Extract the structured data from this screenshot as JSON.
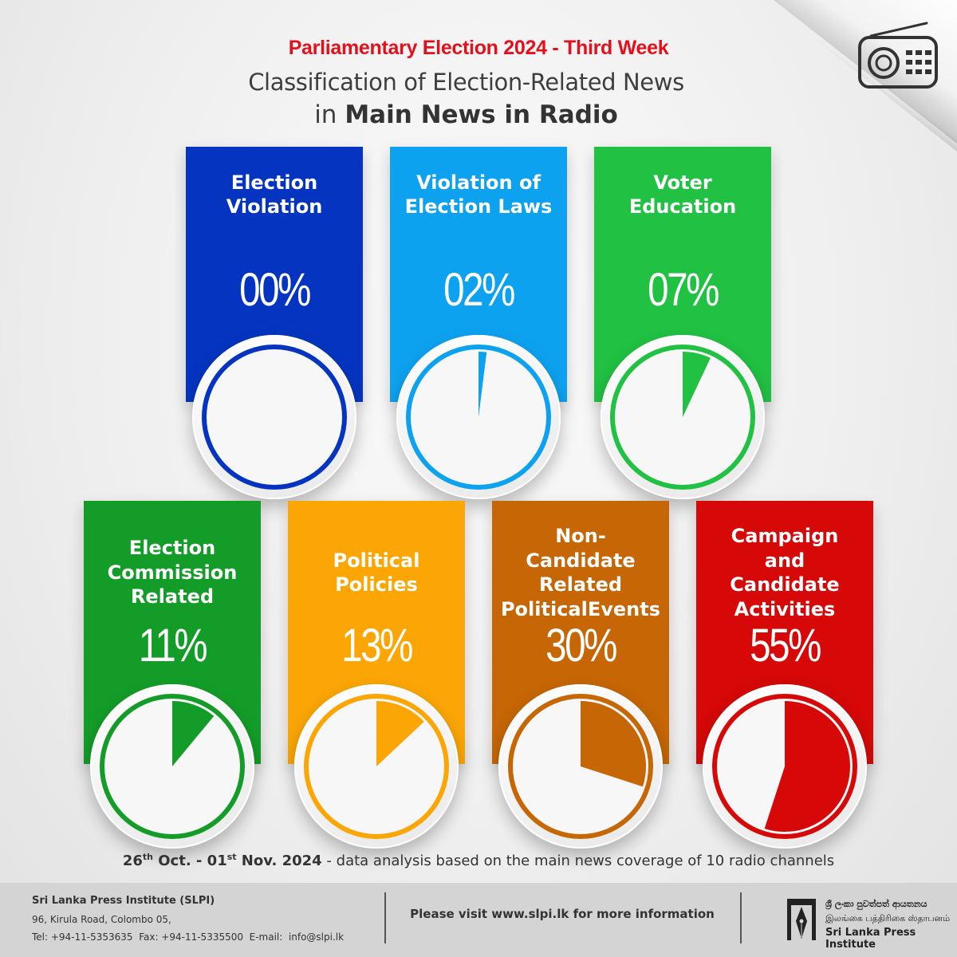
{
  "header": {
    "kicker": "Parliamentary Election 2024 - Third Week",
    "title_line1": "Classification of Election-Related News",
    "title_line2_prefix": "in",
    "title_line2_bold": "Main News in Radio"
  },
  "icons": {
    "corner": "radio-icon",
    "footer_logo": "slpi-pen-logo"
  },
  "chart_data": {
    "type": "pie",
    "unit": "%",
    "items": [
      {
        "lines": [
          "Election",
          "Violation"
        ],
        "label": "Election Violation",
        "value": 0,
        "display": "00%",
        "color": "#0535c0"
      },
      {
        "lines": [
          "Violation of",
          "Election Laws"
        ],
        "label": "Violation of Election Laws",
        "value": 2,
        "display": "02%",
        "color": "#0da2f0"
      },
      {
        "lines": [
          "Voter",
          "Education"
        ],
        "label": "Voter Education",
        "value": 7,
        "display": "07%",
        "color": "#21c143"
      },
      {
        "lines": [
          "Election",
          "Commission",
          "Related"
        ],
        "label": "Election Commission Related",
        "value": 11,
        "display": "11%",
        "color": "#139d28"
      },
      {
        "lines": [
          "Political",
          "Policies"
        ],
        "label": "Political Policies",
        "value": 13,
        "display": "13%",
        "color": "#fba605"
      },
      {
        "lines": [
          "Non-",
          "Candidate",
          "Related",
          "PoliticalEvents"
        ],
        "label": "Non-Candidate Related PoliticalEvents",
        "value": 30,
        "display": "30%",
        "color": "#c66604"
      },
      {
        "lines": [
          "Campaign",
          "and",
          "Candidate",
          "Activities"
        ],
        "label": "Campaign and Candidate Activities",
        "value": 55,
        "display": "55%",
        "color": "#d60808"
      }
    ]
  },
  "period": {
    "start_day": "26",
    "start_suffix": "th",
    "start_rest": " Oct. - 01",
    "end_suffix": "st",
    "end_rest": " Nov. 2024",
    "description": " - data analysis based on the main news coverage of 10 radio channels"
  },
  "footer": {
    "org": "Sri Lanka Press Institute (SLPI)",
    "address": "96, Kirula Road, Colombo 05,",
    "contact": "Tel: +94-11-5353635  Fax: +94-11-5335500  E-mail:  info@slpi.lk",
    "visit": "Please visit www.slpi.lk for more information",
    "logo_sinhala": "ශ්‍රී ලංකා පුවත්පත් ආයතනය",
    "logo_tamil": "இலங்கை பத்திரிகை ஸ்தாபனம்",
    "logo_english": "Sri Lanka Press Institute"
  }
}
